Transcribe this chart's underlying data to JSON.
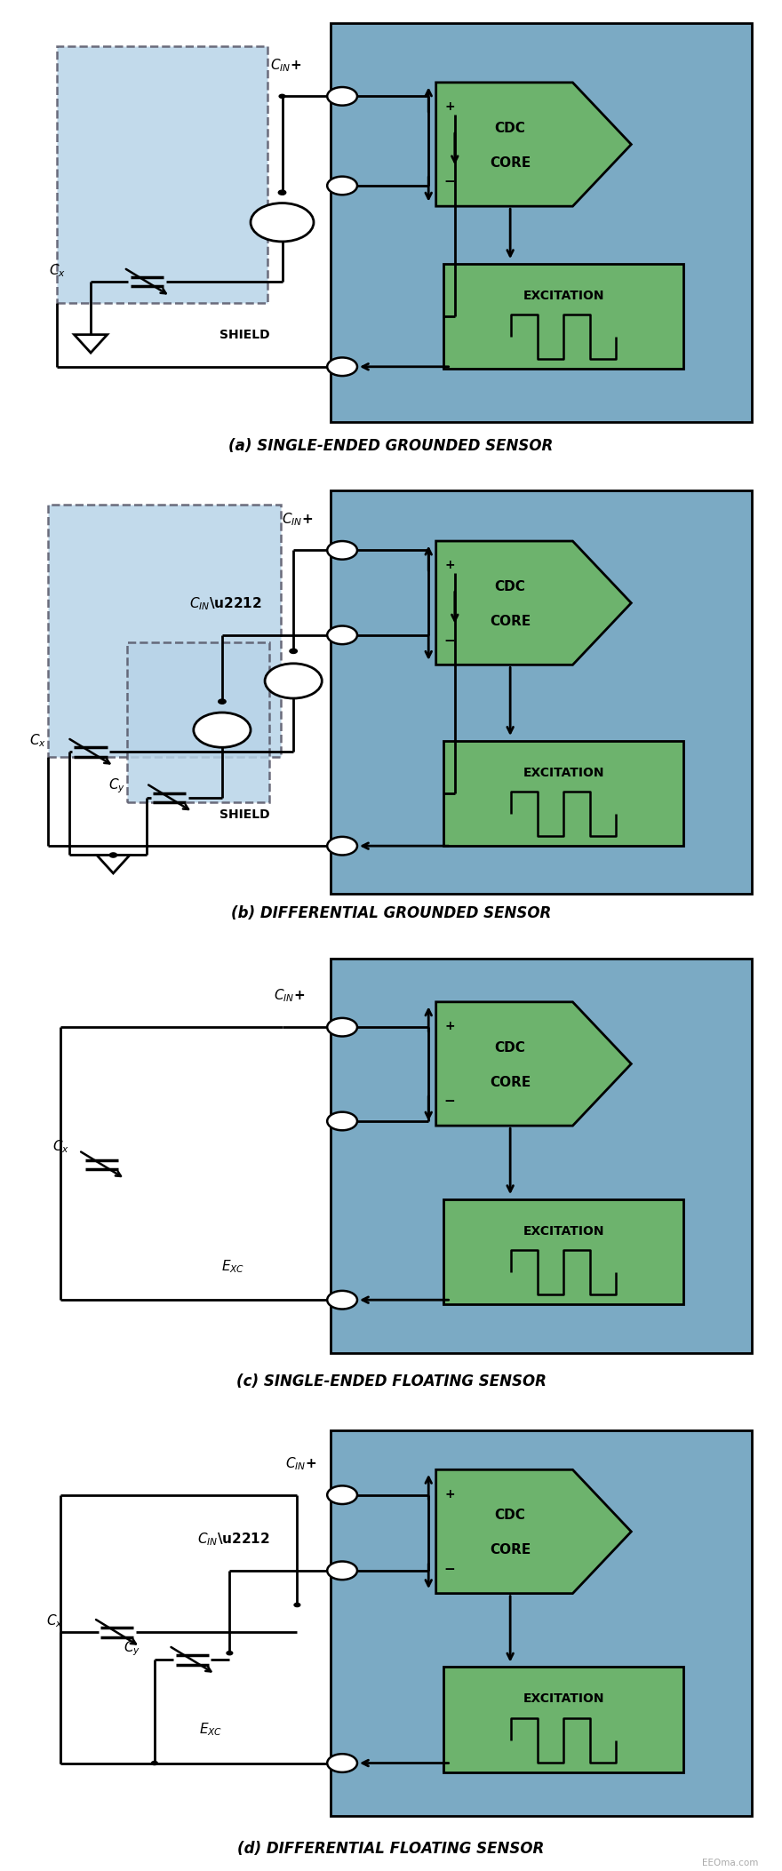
{
  "bg_color": "#ffffff",
  "blue_bg": "#7baac4",
  "green_box": "#6db36d",
  "light_blue_shield": "#b8d4e8",
  "fig_width": 8.8,
  "fig_height": 21.06,
  "panels": [
    {
      "label": "(a) SINGLE-ENDED GROUNDED SENSOR",
      "type": "single_grounded"
    },
    {
      "label": "(b) DIFFERENTIAL GROUNDED SENSOR",
      "type": "diff_grounded"
    },
    {
      "label": "(c) SINGLE-ENDED FLOATING SENSOR",
      "type": "single_floating"
    },
    {
      "label": "(d) DIFFERENTIAL FLOATING SENSOR",
      "type": "diff_floating"
    }
  ]
}
